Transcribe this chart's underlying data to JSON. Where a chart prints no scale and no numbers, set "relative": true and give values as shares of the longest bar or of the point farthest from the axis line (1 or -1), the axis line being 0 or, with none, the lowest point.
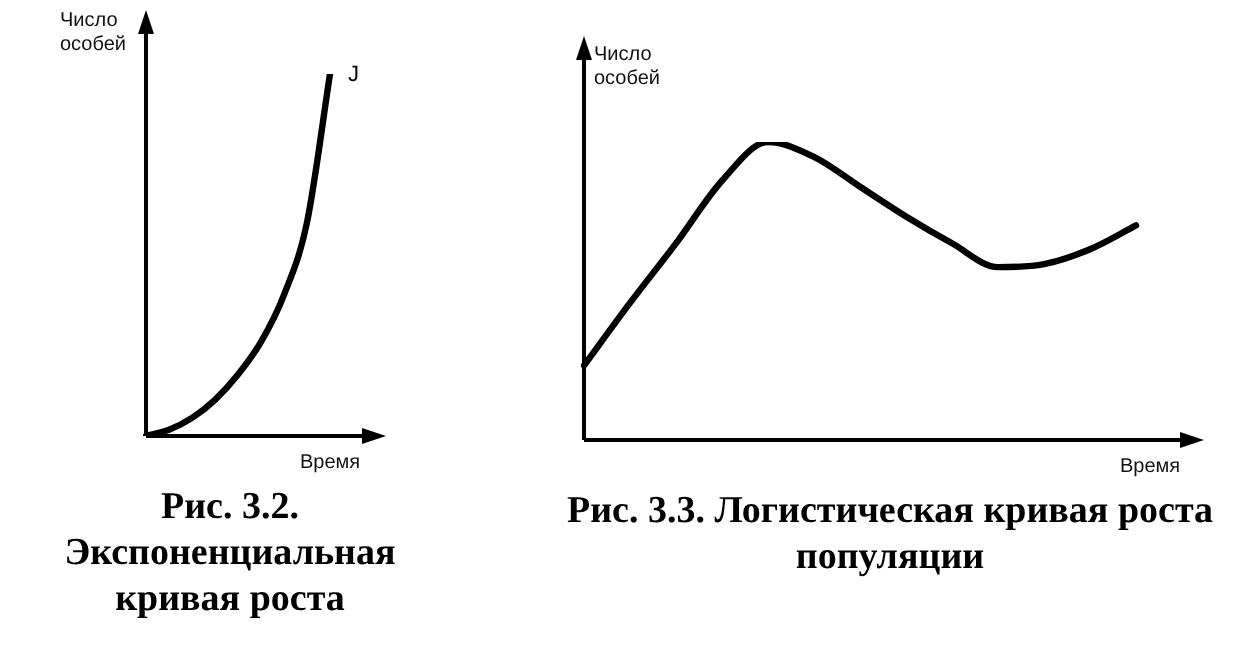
{
  "chart_data": [
    {
      "type": "line",
      "title": "Рис. 3.2. Экспоненциальная кривая роста",
      "xlabel": "Время",
      "ylabel": "Число особей",
      "relative": true,
      "annotations": [
        "J"
      ],
      "categories": [
        null,
        null,
        null,
        null,
        null,
        null,
        null,
        null,
        null,
        null,
        null
      ],
      "series": [
        {
          "color": "#000000",
          "values": [
            0,
            0.017,
            0.05,
            0.1,
            0.17,
            0.26,
            0.39,
            0.59,
            1,
            null,
            null
          ]
        }
      ]
    },
    {
      "type": "line",
      "title": "Рис. 3.3. Логистическая кривая роста популяции",
      "xlabel": "Время",
      "ylabel": "Число особей",
      "relative": true,
      "categories": [
        null,
        null,
        null,
        null,
        null,
        null,
        null,
        null,
        null,
        null,
        null,
        null,
        null,
        null
      ],
      "series": [
        {
          "color": "#000000",
          "values": [
            0.25,
            0.46,
            0.66,
            0.87,
            1,
            0.95,
            0.85,
            0.75,
            0.66,
            0.58,
            0.59,
            0.64,
            0.72,
            null
          ]
        }
      ]
    }
  ]
}
